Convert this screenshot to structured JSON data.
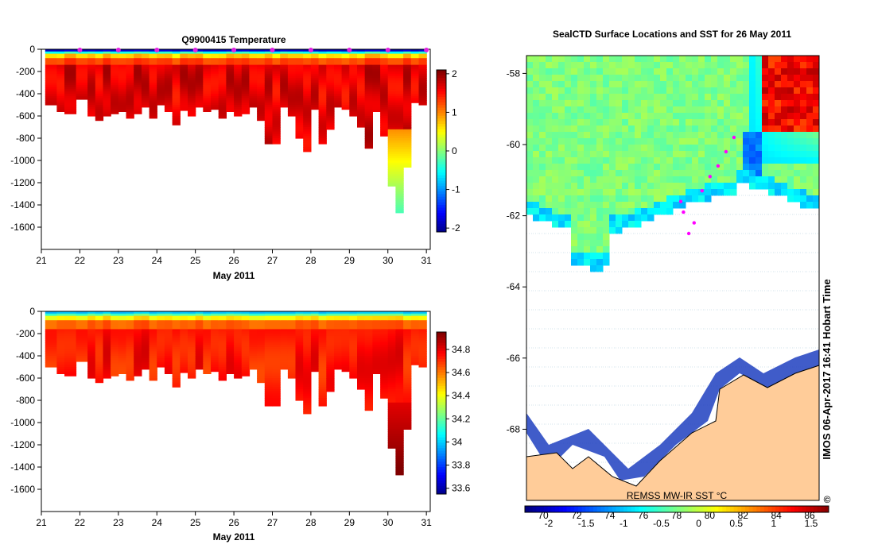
{
  "chart_data": [
    {
      "type": "heatmap",
      "title": "Q9900415  Temperature",
      "xlabel": "May 2011",
      "ylabel": "",
      "xlim": [
        21,
        31.1
      ],
      "ylim": [
        -1800,
        0
      ],
      "xticks": [
        "21",
        "22",
        "23",
        "24",
        "25",
        "26",
        "27",
        "28",
        "29",
        "30",
        "31"
      ],
      "yticks": [
        "0",
        "-200",
        "-400",
        "-600",
        "-800",
        "-1000",
        "-1200",
        "-1400",
        "-1600"
      ],
      "colorbar": {
        "min": -2.1,
        "max": 2.1,
        "ticks": [
          "2",
          "1",
          "0",
          "-1",
          "-2"
        ]
      },
      "profile_markers_x": [
        22,
        23,
        24,
        25,
        26,
        27,
        28,
        29,
        30,
        31
      ],
      "profiles_day": [
        21.3,
        21.5,
        21.7,
        22.1,
        22.3,
        22.5,
        22.7,
        22.9,
        23.1,
        23.3,
        23.5,
        23.7,
        23.9,
        24.1,
        24.3,
        24.5,
        24.7,
        24.9,
        25.1,
        25.3,
        25.5,
        25.7,
        25.9,
        26.1,
        26.3,
        26.5,
        26.7,
        26.9,
        27.1,
        27.3,
        27.5,
        27.7,
        27.9,
        28.1,
        28.3,
        28.5,
        28.7,
        28.9,
        29.1,
        29.3,
        29.5,
        29.7,
        29.9,
        30.1,
        30.3,
        30.5,
        30.7,
        30.9
      ],
      "profiles_max_depth": [
        500,
        560,
        580,
        450,
        600,
        640,
        600,
        580,
        560,
        620,
        580,
        520,
        620,
        500,
        560,
        680,
        550,
        600,
        520,
        560,
        540,
        620,
        560,
        600,
        580,
        520,
        640,
        850,
        850,
        520,
        600,
        800,
        920,
        540,
        850,
        720,
        520,
        540,
        600,
        700,
        890,
        560,
        780,
        1230,
        1470,
        1060,
        480,
        500
      ]
    },
    {
      "type": "heatmap",
      "title": "",
      "xlabel": "May 2011",
      "ylabel": "",
      "xlim": [
        21,
        31.1
      ],
      "ylim": [
        -1800,
        0
      ],
      "xticks": [
        "21",
        "22",
        "23",
        "24",
        "25",
        "26",
        "27",
        "28",
        "29",
        "30",
        "31"
      ],
      "yticks": [
        "0",
        "-200",
        "-400",
        "-600",
        "-800",
        "-1000",
        "-1200",
        "-1400",
        "-1600"
      ],
      "colorbar": {
        "min": 33.55,
        "max": 34.95,
        "ticks": [
          "34.8",
          "34.6",
          "34.4",
          "34.2",
          "34",
          "33.8",
          "33.6"
        ]
      }
    },
    {
      "type": "heatmap",
      "title": "SealCTD Surface Locations and SST for 26 May 2011",
      "xlabel": "",
      "ylabel": "",
      "xlim": [
        69,
        80
      ],
      "ylim": [
        -70,
        -57.5
      ],
      "yticks": [
        "-58",
        "-60",
        "-62",
        "-64",
        "-66",
        "-68"
      ],
      "colorbar": {
        "label": "REMSS MW-IR SST °C",
        "celsius_ticks": [
          "-2",
          "-1.5",
          "-1",
          "-0.5",
          "0",
          "0.5",
          "1",
          "1.5"
        ],
        "longitude_ticks": [
          "70",
          "72",
          "74",
          "76",
          "78",
          "80",
          "82",
          "84",
          "86"
        ]
      },
      "track_positions": [
        [
          74.8,
          -61.6
        ],
        [
          74.9,
          -61.9
        ],
        [
          75.1,
          -62.5
        ],
        [
          75.3,
          -62.2
        ],
        [
          75.6,
          -61.3
        ],
        [
          75.9,
          -60.9
        ],
        [
          76.2,
          -60.6
        ],
        [
          76.5,
          -60.2
        ],
        [
          76.8,
          -59.8
        ]
      ]
    }
  ],
  "credit": "IMOS 06-Apr-2017 16:41 Hobart Time",
  "copyright": "©"
}
